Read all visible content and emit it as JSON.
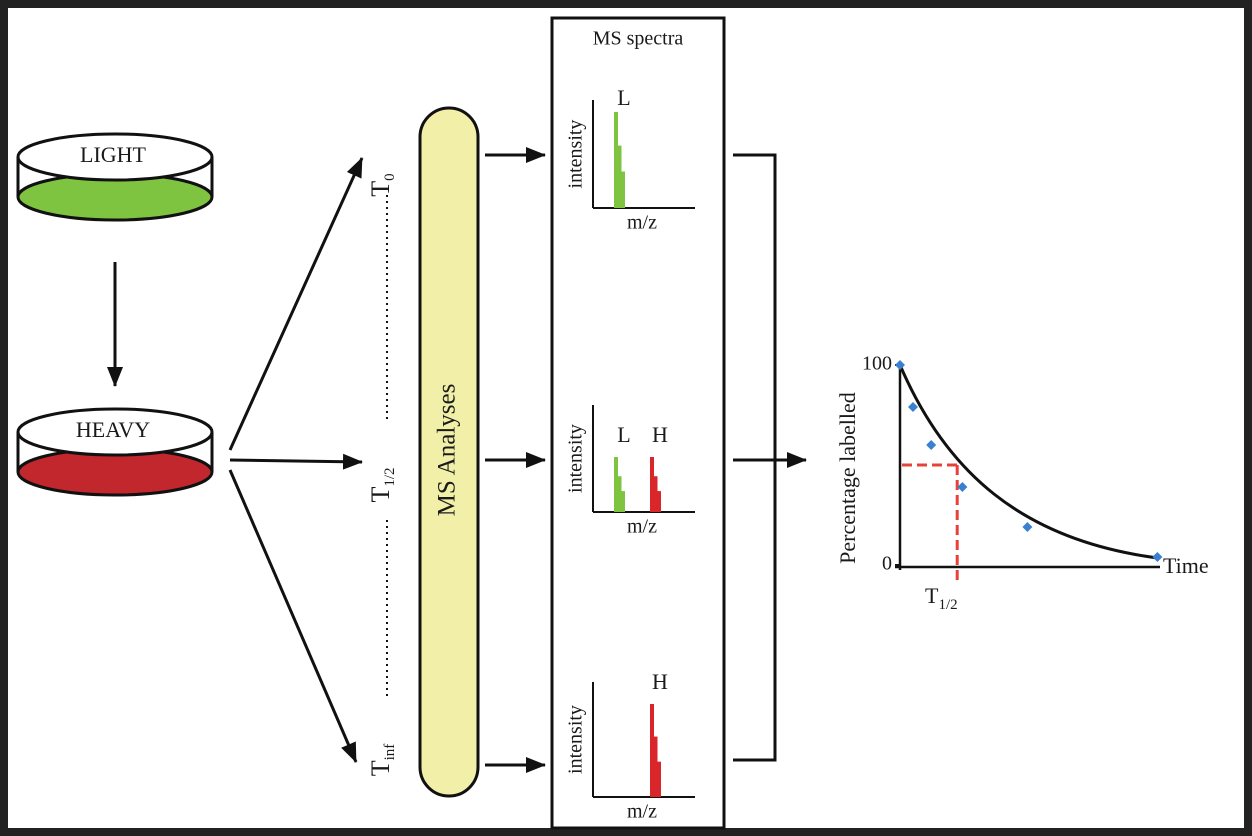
{
  "light_dish": {
    "label": "LIGHT"
  },
  "heavy_dish": {
    "label": "HEAVY"
  },
  "timepoints": [
    {
      "base": "T",
      "sub": "0"
    },
    {
      "base": "T",
      "sub": "1/2"
    },
    {
      "base": "T",
      "sub": "inf"
    }
  ],
  "ms_analyses": "MS Analyses",
  "spectra": {
    "title": "MS spectra",
    "panels": [
      {
        "y_label": "intensity",
        "x_label": "m/z",
        "peaks": [
          "L"
        ]
      },
      {
        "y_label": "intensity",
        "x_label": "m/z",
        "peaks": [
          "L",
          "H"
        ]
      },
      {
        "y_label": "intensity",
        "x_label": "m/z",
        "peaks": [
          "H"
        ]
      }
    ]
  },
  "plot": {
    "y_label": "Percentage labelled",
    "x_label": "Time",
    "ylim": [
      0,
      100
    ],
    "yticks": [
      0,
      100
    ],
    "xlim": [
      0,
      10
    ],
    "points": {
      "x": [
        0,
        0.5,
        1.2,
        2.4,
        4.9,
        9.9
      ],
      "y": [
        100,
        79,
        60,
        39,
        19,
        4
      ],
      "color": "#3a7fd0"
    },
    "half_life": {
      "label": {
        "base": "T",
        "sub": "1/2"
      },
      "x": 2.2,
      "y": 50,
      "color": "#e8413a"
    }
  }
}
